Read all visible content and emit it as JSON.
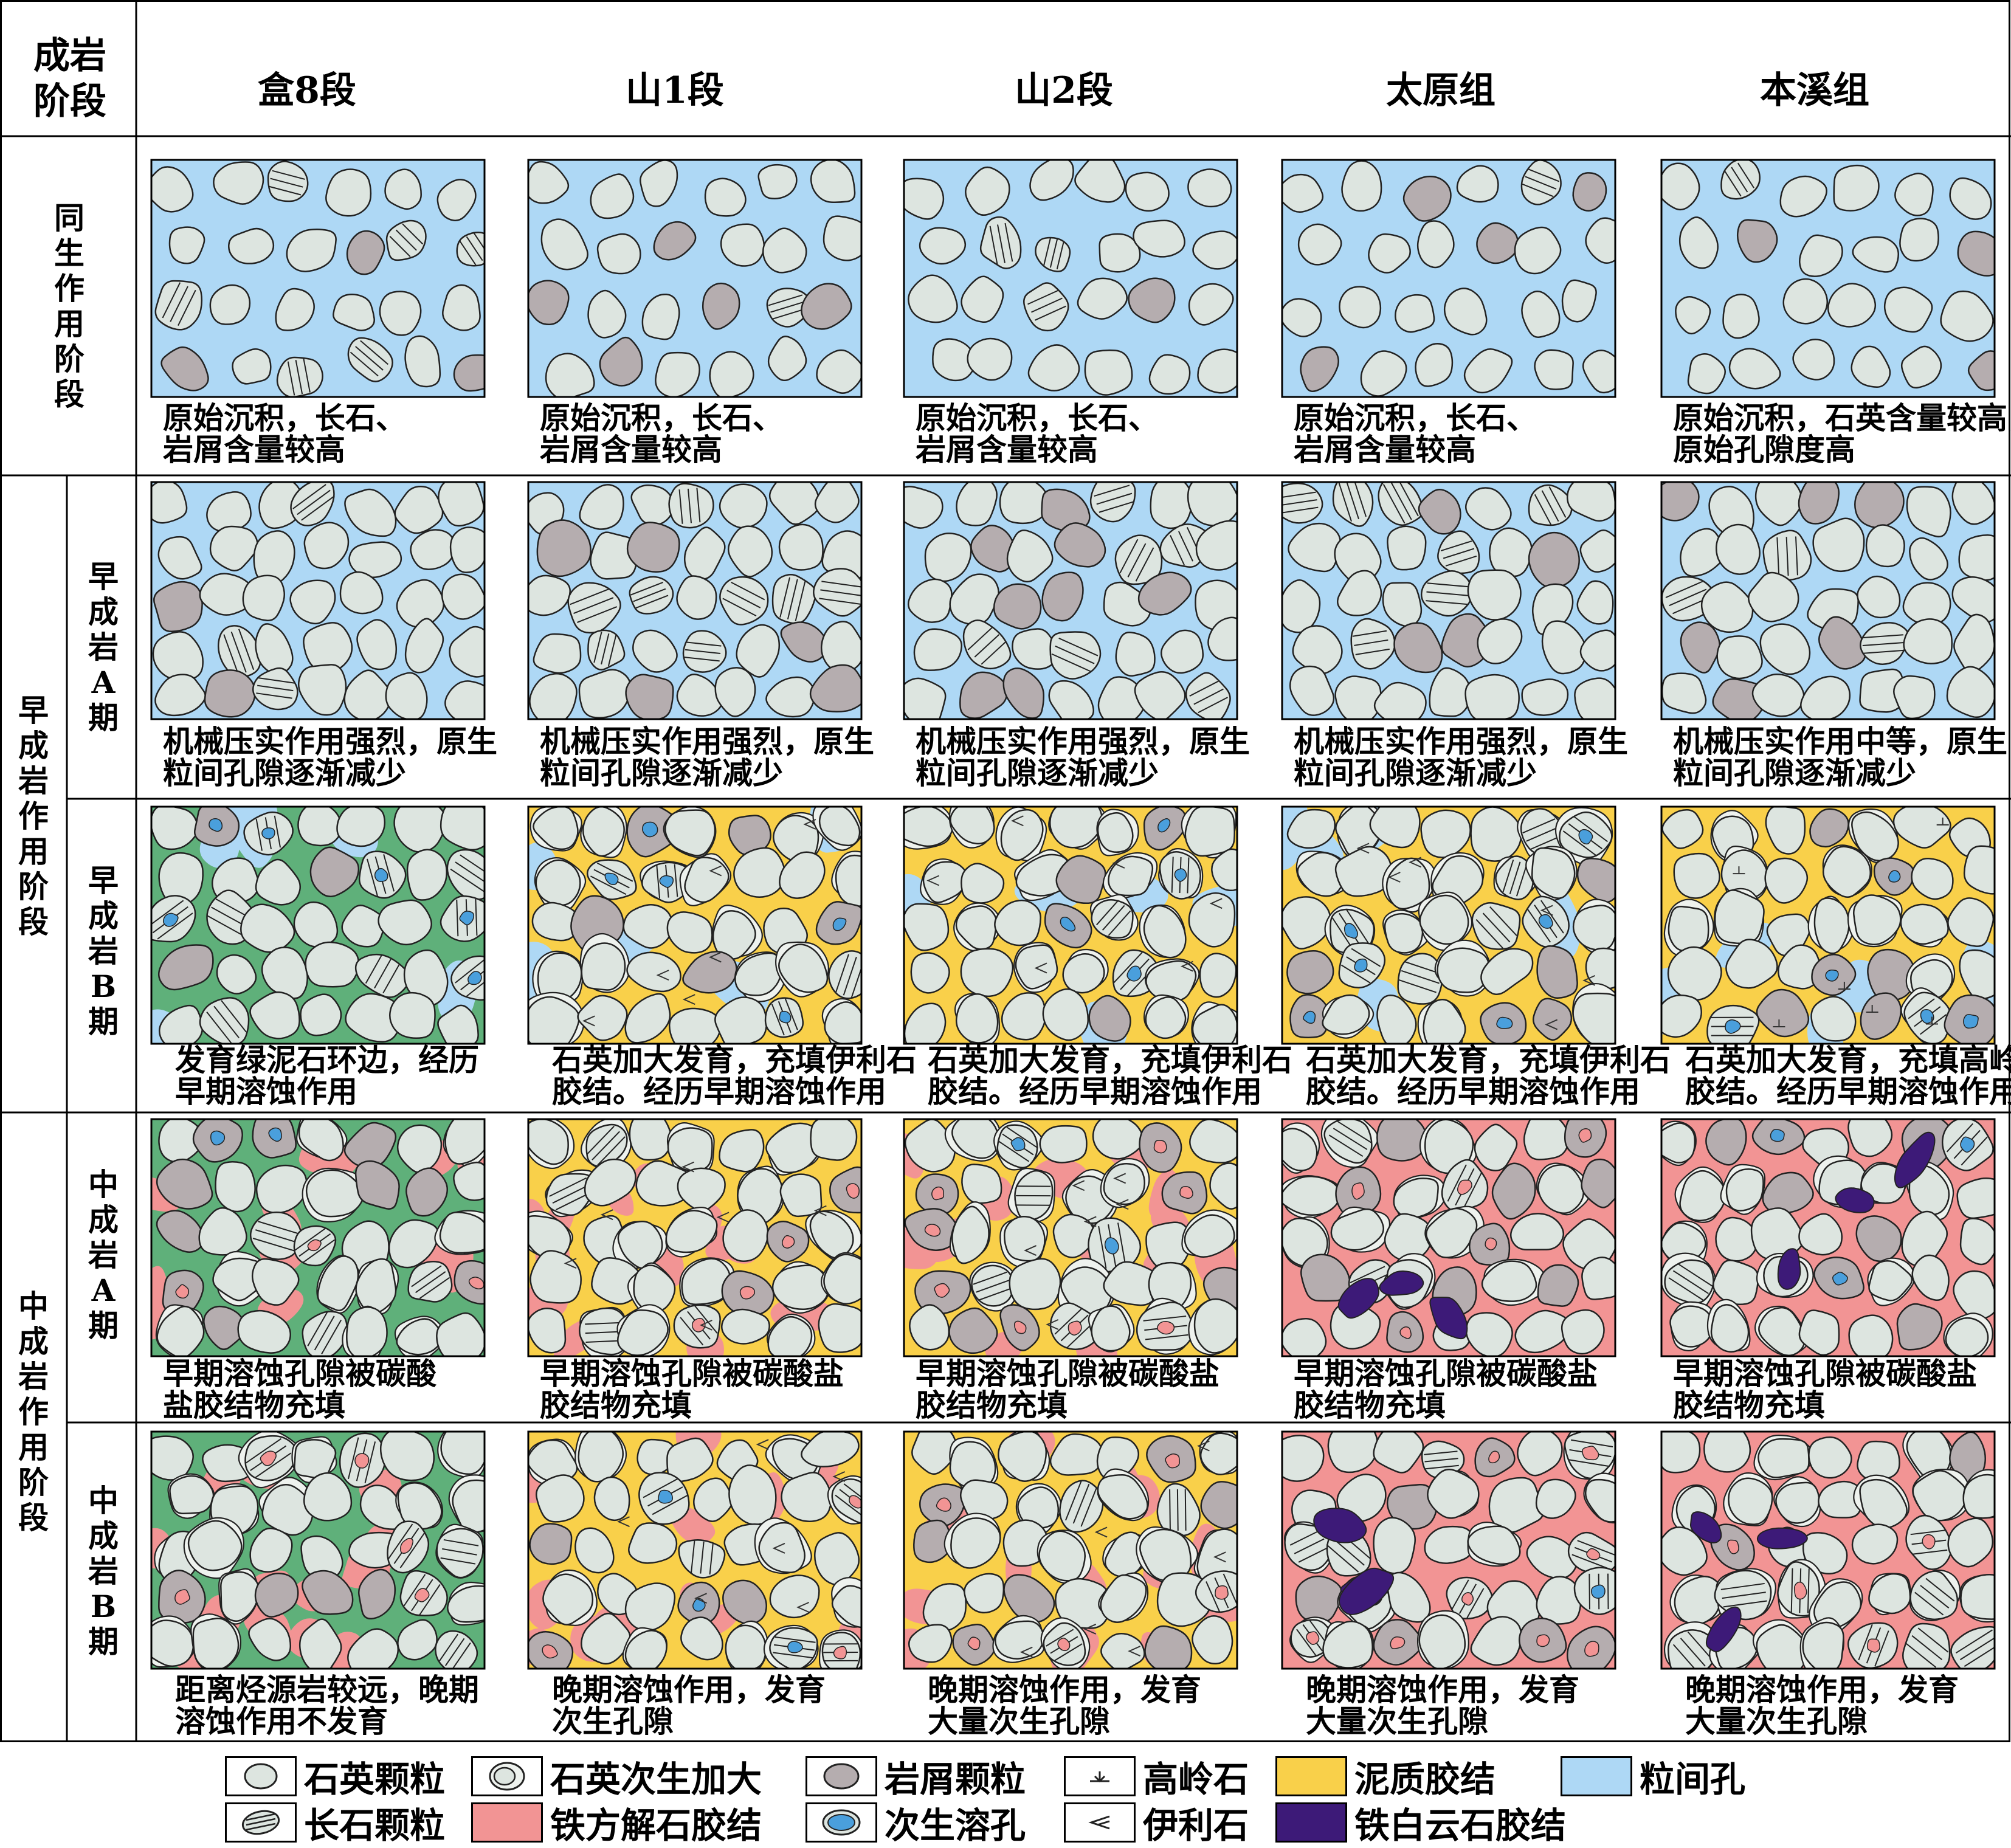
{
  "corner_header": [
    "成岩",
    "阶段"
  ],
  "columns": [
    "盒8段",
    "山1段",
    "山2段",
    "太原组",
    "本溪组"
  ],
  "stages": {
    "syngenetic": "同生作用阶段",
    "early": "早成岩作用阶段",
    "middle": "中成岩作用阶段"
  },
  "substages": {
    "early_a": "早成岩A期",
    "early_b": "早成岩B期",
    "middle_a": "中成岩A期",
    "middle_b": "中成岩B期"
  },
  "captions": {
    "syngenetic": [
      [
        "原始沉积，长石、",
        "岩屑含量较高"
      ],
      [
        "原始沉积，长石、",
        "岩屑含量较高"
      ],
      [
        "原始沉积，长石、",
        "岩屑含量较高"
      ],
      [
        "原始沉积，长石、",
        "岩屑含量较高"
      ],
      [
        "原始沉积，石英含量较高，",
        "原始孔隙度高"
      ]
    ],
    "early_a": [
      [
        "机械压实作用强烈，原生",
        "粒间孔隙逐渐减少"
      ],
      [
        "机械压实作用强烈，原生",
        "粒间孔隙逐渐减少"
      ],
      [
        "机械压实作用强烈，原生",
        "粒间孔隙逐渐减少"
      ],
      [
        "机械压实作用强烈，原生",
        "粒间孔隙逐渐减少"
      ],
      [
        "机械压实作用中等，原生",
        "粒间孔隙逐渐减少"
      ]
    ],
    "early_b": [
      [
        "发育绿泥石环边，经历",
        "早期溶蚀作用"
      ],
      [
        "石英加大发育，充填伊利石",
        "胶结。经历早期溶蚀作用"
      ],
      [
        "石英加大发育，充填伊利石",
        "胶结。经历早期溶蚀作用"
      ],
      [
        "石英加大发育，充填伊利石",
        "胶结。经历早期溶蚀作用"
      ],
      [
        "石英加大发育，充填高岭石",
        "胶结。经历早期溶蚀作用"
      ]
    ],
    "middle_a": [
      [
        "早期溶蚀孔隙被碳酸",
        "盐胶结物充填"
      ],
      [
        "早期溶蚀孔隙被碳酸盐",
        "胶结物充填"
      ],
      [
        "早期溶蚀孔隙被碳酸盐",
        "胶结物充填"
      ],
      [
        "早期溶蚀孔隙被碳酸盐",
        "胶结物充填"
      ],
      [
        "早期溶蚀孔隙被碳酸盐",
        "胶结物充填"
      ]
    ],
    "middle_b": [
      [
        "距离烃源岩较远，晚期",
        "溶蚀作用不发育"
      ],
      [
        "晚期溶蚀作用，发育",
        "次生孔隙"
      ],
      [
        "晚期溶蚀作用，发育",
        "大量次生孔隙"
      ],
      [
        "晚期溶蚀作用，发育",
        "大量次生孔隙"
      ],
      [
        "晚期溶蚀作用，发育",
        "大量次生孔隙"
      ]
    ]
  },
  "legend": [
    {
      "label": "石英颗粒",
      "icon": "quartz-grain-icon"
    },
    {
      "label": "石英次生加大",
      "icon": "quartz-overgrowth-icon"
    },
    {
      "label": "岩屑颗粒",
      "icon": "lithic-grain-icon"
    },
    {
      "label": "高岭石",
      "icon": "kaolinite-icon"
    },
    {
      "label": "泥质胶结",
      "icon": "argillaceous-cement-icon",
      "color": "#F9D04A"
    },
    {
      "label": "粒间孔",
      "icon": "intergranular-pore-icon",
      "color": "#AED8F5"
    },
    {
      "label": "长石颗粒",
      "icon": "feldspar-grain-icon"
    },
    {
      "label": "铁方解石胶结",
      "icon": "ferrocalcite-cement-icon",
      "color": "#F29494"
    },
    {
      "label": "次生溶孔",
      "icon": "secondary-pore-icon",
      "color": "#4A9FDC"
    },
    {
      "label": "伊利石",
      "icon": "illite-icon"
    },
    {
      "label": "铁白云石胶结",
      "icon": "ankerite-cement-icon",
      "color": "#3D1A78"
    }
  ],
  "colors": {
    "pore": "#AED8F5",
    "grain": "#DDE5E0",
    "lithic": "#B5ADAF",
    "chlorite": "#5FB07A",
    "clay": "#F9D04A",
    "calcite": "#F29494",
    "ankerite": "#3D1A78",
    "dissolution": "#4A9FDC"
  }
}
